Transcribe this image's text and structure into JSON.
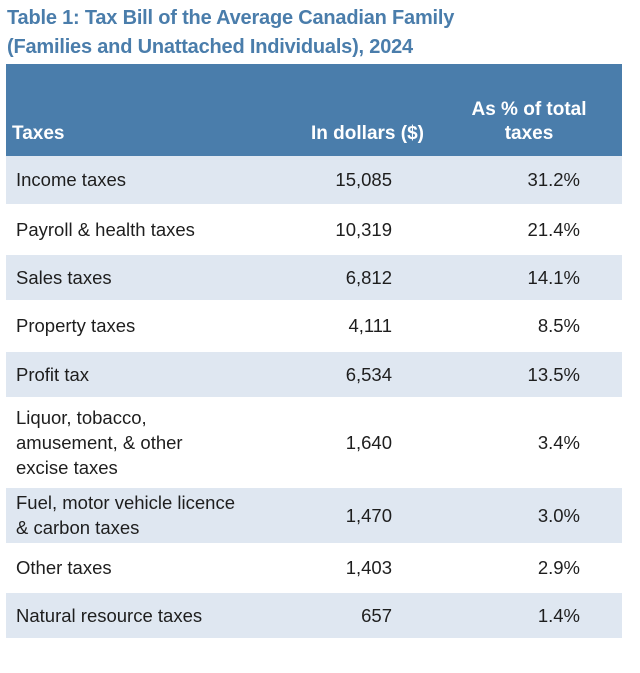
{
  "title": {
    "line1": "Table 1: Tax Bill of the Average Canadian Family",
    "line2": "(Families and Unattached Individuals), 2024"
  },
  "headers": {
    "taxes": "Taxes",
    "dollars": "In dollars ($)",
    "pct_line1": "As % of total",
    "pct_line2": "taxes"
  },
  "rows": [
    {
      "name_lines": [
        "Income taxes"
      ],
      "dollars": "15,085",
      "pct": "31.2%"
    },
    {
      "name_lines": [
        "Payroll & health taxes"
      ],
      "dollars": "10,319",
      "pct": "21.4%"
    },
    {
      "name_lines": [
        "Sales taxes"
      ],
      "dollars": "6,812",
      "pct": "14.1%"
    },
    {
      "name_lines": [
        "Property taxes"
      ],
      "dollars": "4,111",
      "pct": "8.5%"
    },
    {
      "name_lines": [
        "Profit tax"
      ],
      "dollars": "6,534",
      "pct": "13.5%"
    },
    {
      "name_lines": [
        "Liquor, tobacco,",
        "amusement, & other",
        "excise taxes"
      ],
      "dollars": "1,640",
      "pct": "3.4%"
    },
    {
      "name_lines": [
        "Fuel, motor vehicle licence",
        "& carbon taxes"
      ],
      "dollars": "1,470",
      "pct": "3.0%"
    },
    {
      "name_lines": [
        "Other taxes"
      ],
      "dollars": "1,403",
      "pct": "2.9%"
    },
    {
      "name_lines": [
        "Natural resource taxes"
      ],
      "dollars": "657",
      "pct": "1.4%"
    }
  ],
  "colors": {
    "title": "#4a7dab",
    "header_bg": "#4a7dab",
    "header_text": "#ffffff",
    "stripe": "#dfe7f1",
    "text": "#1e1e1e"
  }
}
